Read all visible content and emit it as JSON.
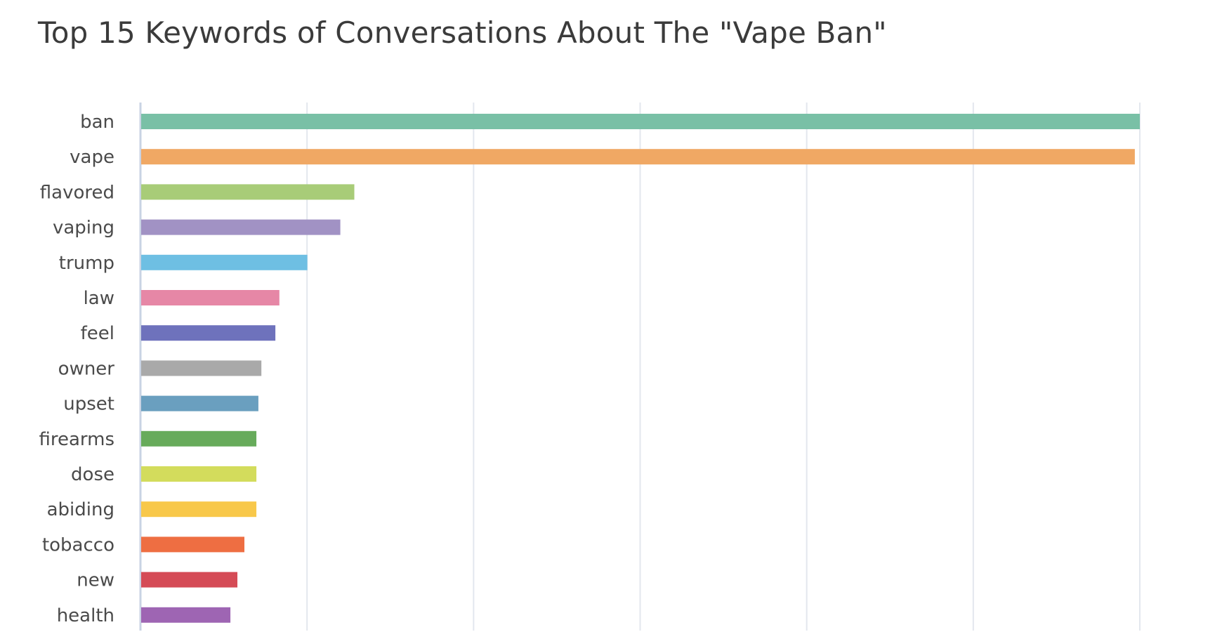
{
  "chart_data": {
    "type": "bar",
    "orientation": "horizontal",
    "title": "Top 15 Keywords of Conversations About The \"Vape Ban\"",
    "xlabel": "",
    "ylabel": "",
    "grid": true,
    "xlim": [
      0,
      100
    ],
    "categories": [
      "ban",
      "vape",
      "flavored",
      "vaping",
      "trump",
      "law",
      "feel",
      "owner",
      "upset",
      "firearms",
      "dose",
      "abiding",
      "tobacco",
      "new",
      "health"
    ],
    "values": [
      100,
      99.5,
      21.4,
      20,
      16.7,
      13.9,
      13.5,
      12.1,
      11.8,
      11.6,
      11.6,
      11.6,
      10.4,
      9.7,
      9
    ],
    "colors": [
      "#79c0a6",
      "#f0a864",
      "#a8cc78",
      "#a192c4",
      "#6ebfe3",
      "#e687a6",
      "#6e72bc",
      "#a9a9a9",
      "#6a9fbf",
      "#67ab5b",
      "#d3dc5c",
      "#f8c84a",
      "#ee6e42",
      "#d54b56",
      "#9e65b3"
    ]
  }
}
